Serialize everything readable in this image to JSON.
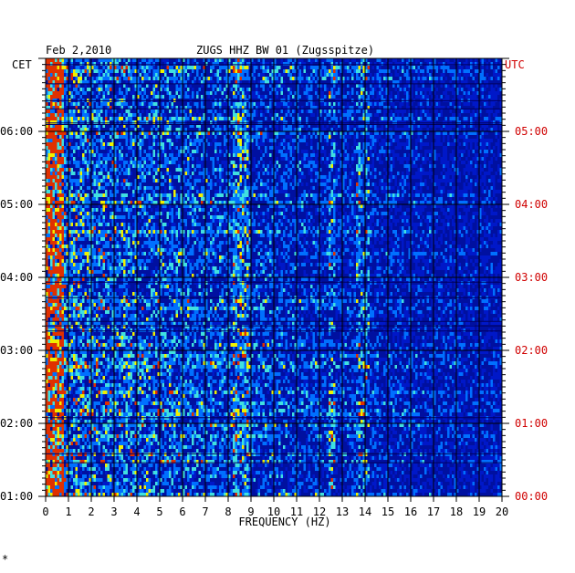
{
  "header": {
    "date": "Feb 2,2010",
    "station": "ZUGS HHZ BW 01 (Zugsspitze)"
  },
  "footer_mark": "*",
  "chart_data": {
    "type": "heatmap",
    "title": "ZUGS HHZ BW 01 (Zugsspitze)",
    "date": "Feb 2,2010",
    "xlabel": "FREQUENCY (HZ)",
    "x_ticks": [
      "0",
      "1",
      "2",
      "3",
      "4",
      "5",
      "6",
      "7",
      "8",
      "9",
      "10",
      "11",
      "12",
      "13",
      "14",
      "15",
      "16",
      "17",
      "18",
      "19",
      "20"
    ],
    "xlim": [
      0,
      20
    ],
    "left_axis": {
      "label": "CET",
      "ticks": [
        "06:00",
        "05:00",
        "04:00",
        "03:00",
        "02:00",
        "01:00"
      ],
      "range": [
        "01:00",
        "07:00"
      ]
    },
    "right_axis": {
      "label": "UTC",
      "ticks": [
        "05:00",
        "04:00",
        "03:00",
        "02:00",
        "01:00",
        "00:00"
      ],
      "range": [
        "00:00",
        "06:00"
      ]
    },
    "grid": true,
    "colors": {
      "background": "#0018c8",
      "low": "#0010a0",
      "mid": "#0070ff",
      "cyan": "#40e0e0",
      "high": "#f0f000",
      "peak": "#e03000",
      "utc_label": "#d00000",
      "grid": "#000000"
    },
    "energy_bands_hz": [
      {
        "from": 0,
        "to": 0.8,
        "level": "high"
      },
      {
        "from": 8.2,
        "to": 8.9,
        "level": "mid"
      },
      {
        "from": 12.4,
        "to": 12.7,
        "level": "mid"
      },
      {
        "from": 13.6,
        "to": 14.2,
        "level": "mid"
      }
    ]
  }
}
